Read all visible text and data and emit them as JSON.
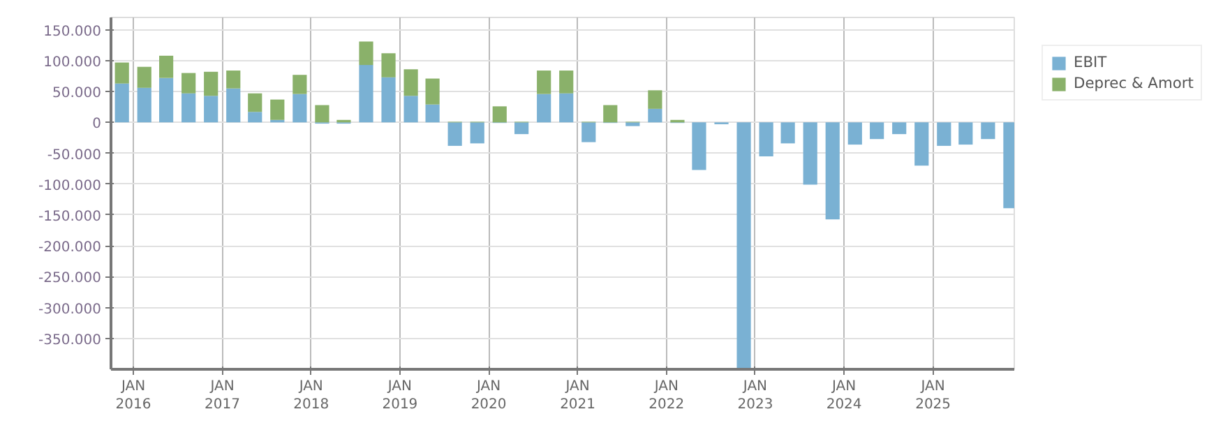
{
  "chart_data": {
    "type": "bar",
    "stacked": true,
    "x": [
      "2015-11-15",
      "2016-02-15",
      "2016-05-15",
      "2016-08-15",
      "2016-11-15",
      "2017-02-15",
      "2017-05-15",
      "2017-08-15",
      "2017-11-15",
      "2018-02-15",
      "2018-05-15",
      "2018-08-15",
      "2018-11-15",
      "2019-02-15",
      "2019-05-15",
      "2019-08-15",
      "2019-11-15",
      "2020-02-15",
      "2020-05-15",
      "2020-08-15",
      "2020-11-15",
      "2021-02-15",
      "2021-05-15",
      "2021-08-15",
      "2021-11-15",
      "2022-02-15",
      "2022-05-15",
      "2022-08-15",
      "2022-11-15",
      "2023-02-15",
      "2023-05-15",
      "2023-08-15",
      "2023-11-15",
      "2024-02-15",
      "2024-05-15",
      "2024-08-15",
      "2024-11-15",
      "2025-02-15",
      "2025-05-15",
      "2025-08-15",
      "2025-11-15"
    ],
    "series": [
      {
        "name": "EBIT",
        "color": "#7ab1d3",
        "values": [
          63000,
          56000,
          72000,
          47000,
          43000,
          55000,
          17000,
          4000,
          46000,
          -2000,
          -2000,
          93000,
          73000,
          43000,
          29000,
          -38000,
          -34000,
          -1000,
          -19000,
          46000,
          47000,
          -32000,
          -1000,
          -6000,
          22000,
          -1000,
          -77000,
          -3000,
          -400000,
          -55000,
          -34000,
          -101000,
          -157000,
          -36000,
          -27000,
          -19000,
          -70000,
          -38000,
          -36000,
          -27000,
          -139000
        ]
      },
      {
        "name": "Deprec & Amort",
        "color": "#8ab16a",
        "values": [
          34000,
          34000,
          36000,
          33000,
          39000,
          29000,
          30000,
          33000,
          31000,
          28000,
          4000,
          38000,
          39000,
          43000,
          42000,
          1000,
          1000,
          26000,
          1000,
          38000,
          37000,
          1000,
          28000,
          1000,
          30000,
          4000,
          0,
          0,
          0,
          0,
          0,
          0,
          0,
          0,
          0,
          0,
          0,
          0,
          0,
          0,
          0
        ]
      }
    ],
    "xlim": [
      "2015-10-01",
      "2025-12-01"
    ],
    "xticks": [
      {
        "value": "2016-01-01",
        "label": "JAN\n2016"
      },
      {
        "value": "2017-01-01",
        "label": "JAN\n2017"
      },
      {
        "value": "2018-01-01",
        "label": "JAN\n2018"
      },
      {
        "value": "2019-01-01",
        "label": "JAN\n2019"
      },
      {
        "value": "2020-01-01",
        "label": "JAN\n2020"
      },
      {
        "value": "2021-01-01",
        "label": "JAN\n2021"
      },
      {
        "value": "2022-01-01",
        "label": "JAN\n2022"
      },
      {
        "value": "2023-01-01",
        "label": "JAN\n2023"
      },
      {
        "value": "2024-01-01",
        "label": "JAN\n2024"
      },
      {
        "value": "2025-01-01",
        "label": "JAN\n2025"
      }
    ],
    "ylim": [
      -400000,
      170000
    ],
    "yticks": [
      {
        "value": 150000,
        "label": "150.000"
      },
      {
        "value": 100000,
        "label": "100.000"
      },
      {
        "value": 50000,
        "label": "50.000"
      },
      {
        "value": 0,
        "label": "0"
      },
      {
        "value": -50000,
        "label": "-50.000"
      },
      {
        "value": -100000,
        "label": "-100.000"
      },
      {
        "value": -150000,
        "label": "-150.000"
      },
      {
        "value": -200000,
        "label": "-200.000"
      },
      {
        "value": -250000,
        "label": "-250.000"
      },
      {
        "value": -300000,
        "label": "-300.000"
      },
      {
        "value": -350000,
        "label": "-350.000"
      }
    ],
    "grid": true,
    "legend": "top right"
  }
}
